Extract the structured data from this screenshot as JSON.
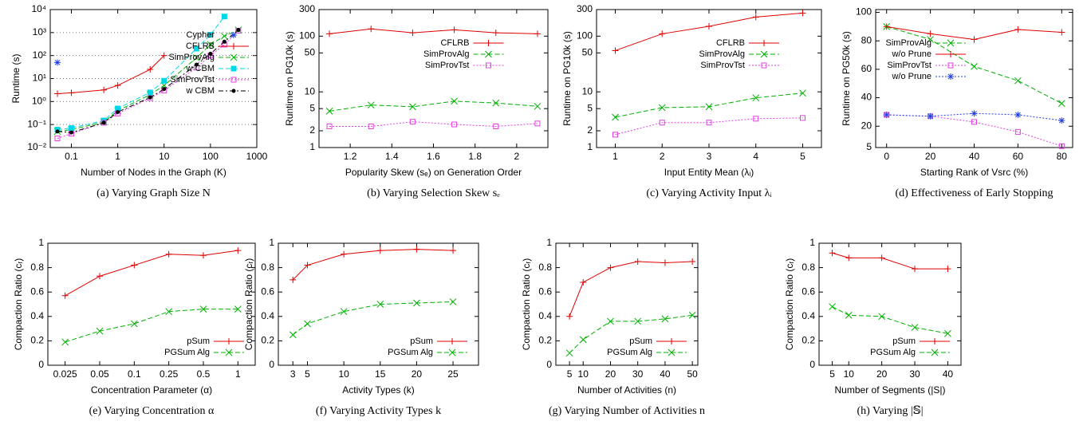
{
  "chart_data": [
    {
      "type": "line",
      "caption": "(a) Varying Graph Size N",
      "x_label": "Number of Nodes in the Graph (K)",
      "y_label": "Runtime (s)",
      "xscale": "log",
      "yscale": "log",
      "xlim": [
        0.035,
        1000
      ],
      "ylim": [
        0.01,
        10000
      ],
      "grid": true,
      "legend": "right",
      "xticks": [
        0.1,
        1,
        10,
        100,
        1000
      ],
      "yticks": [
        {
          "value": 0.01,
          "label": "10⁻²"
        },
        {
          "value": 0.1,
          "label": "10⁻¹"
        },
        {
          "value": 1,
          "label": "10⁰"
        },
        {
          "value": 10,
          "label": "10¹"
        },
        {
          "value": 100,
          "label": "10²"
        },
        {
          "value": 1000,
          "label": "10³"
        },
        {
          "value": 10000,
          "label": "10⁴"
        }
      ],
      "series": [
        {
          "name": "Cypher",
          "color": "#2040e0",
          "marker": "star",
          "line_style": "none",
          "x": [
            0.05
          ],
          "values": [
            50
          ]
        },
        {
          "name": "CFLRB",
          "color": "#e00000",
          "marker": "plus",
          "line_style": "solid",
          "x": [
            0.05,
            0.1,
            0.5,
            1,
            5,
            10
          ],
          "values": [
            2.2,
            2.4,
            3.2,
            5,
            25,
            100
          ]
        },
        {
          "name": "SimProvAlg",
          "color": "#00b000",
          "marker": "cross",
          "line_style": "dashed",
          "x": [
            0.05,
            0.1,
            0.5,
            1,
            5,
            10,
            50,
            100,
            200,
            400
          ],
          "values": [
            0.05,
            0.06,
            0.13,
            0.4,
            2,
            5,
            80,
            300,
            700,
            1300
          ]
        },
        {
          "name": "w CBM",
          "color": "#00d8e8",
          "marker": "square",
          "line_style": "dashed",
          "x": [
            0.05,
            0.1,
            0.5,
            1,
            5,
            10,
            50,
            100,
            200
          ],
          "values": [
            0.06,
            0.07,
            0.15,
            0.5,
            2.5,
            8,
            200,
            800,
            5000
          ]
        },
        {
          "name": "SimProvTst",
          "color": "#e040e0",
          "marker": "open-square",
          "line_style": "dotted",
          "x": [
            0.05,
            0.1,
            0.5,
            1,
            5,
            10,
            50,
            100,
            200,
            400
          ],
          "values": [
            0.025,
            0.04,
            0.12,
            0.3,
            1.4,
            3,
            30,
            100,
            300,
            1200
          ]
        },
        {
          "name": "w CBM",
          "color": "#000000",
          "marker": "dot",
          "line_style": "dashdot",
          "x": [
            0.05,
            0.1,
            0.5,
            1,
            5,
            10,
            50,
            100,
            200,
            400
          ],
          "values": [
            0.05,
            0.045,
            0.12,
            0.35,
            1.5,
            3.5,
            40,
            120,
            400,
            1300
          ]
        }
      ]
    },
    {
      "type": "line",
      "caption": "(b) Varying Selection Skew sₑ",
      "x_label": "Popularity Skew (sₑ) on Generation Order",
      "y_label": "Runtime on PG10k (s)",
      "xscale": "linear",
      "yscale": "log",
      "xlim": [
        1.05,
        2.15
      ],
      "ylim": [
        1,
        300
      ],
      "grid": false,
      "legend": "upper center",
      "xticks": [
        1.2,
        1.4,
        1.6,
        1.8,
        2
      ],
      "yticks": [
        1,
        2,
        5,
        10,
        50,
        100,
        300
      ],
      "series": [
        {
          "name": "CFLRB",
          "color": "#e00000",
          "marker": "plus",
          "line_style": "solid",
          "x": [
            1.1,
            1.3,
            1.5,
            1.7,
            1.9,
            2.1
          ],
          "values": [
            110,
            135,
            115,
            130,
            115,
            110
          ]
        },
        {
          "name": "SimProvAlg",
          "color": "#00b000",
          "marker": "cross",
          "line_style": "dashed",
          "x": [
            1.1,
            1.3,
            1.5,
            1.7,
            1.9,
            2.1
          ],
          "values": [
            4.5,
            5.8,
            5.4,
            6.8,
            6.3,
            5.5
          ]
        },
        {
          "name": "SimProvTst",
          "color": "#e040e0",
          "marker": "open-square",
          "line_style": "dotted",
          "x": [
            1.1,
            1.3,
            1.5,
            1.7,
            1.9,
            2.1
          ],
          "values": [
            2.4,
            2.4,
            2.9,
            2.6,
            2.4,
            2.7
          ]
        }
      ]
    },
    {
      "type": "line",
      "caption": "(c) Varying Activity Input λᵢ",
      "x_label": "Input Entity Mean (λᵢ)",
      "y_label": "Runtime on PG10k (s)",
      "xscale": "linear",
      "yscale": "log",
      "xlim": [
        0.6,
        5.4
      ],
      "ylim": [
        1,
        300
      ],
      "grid": false,
      "legend": "upper center",
      "xticks": [
        1,
        2,
        3,
        4,
        5
      ],
      "yticks": [
        1,
        2,
        5,
        10,
        50,
        100,
        300
      ],
      "series": [
        {
          "name": "CFLRB",
          "color": "#e00000",
          "marker": "plus",
          "line_style": "solid",
          "x": [
            1,
            2,
            3,
            4,
            5
          ],
          "values": [
            55,
            110,
            150,
            220,
            260
          ]
        },
        {
          "name": "SimProvAlg",
          "color": "#00b000",
          "marker": "cross",
          "line_style": "dashed",
          "x": [
            1,
            2,
            3,
            4,
            5
          ],
          "values": [
            3.5,
            5.2,
            5.4,
            7.8,
            9.5
          ]
        },
        {
          "name": "SimProvTst",
          "color": "#e040e0",
          "marker": "open-square",
          "line_style": "dotted",
          "x": [
            1,
            2,
            3,
            4,
            5
          ],
          "values": [
            1.7,
            2.8,
            2.8,
            3.3,
            3.4
          ]
        }
      ]
    },
    {
      "type": "line",
      "caption": "(d) Effectiveness of Early Stopping",
      "x_label": "Starting Rank of Vsrc (%)",
      "y_label": "Runtime on PG50k (s)",
      "xscale": "linear",
      "yscale": "linear",
      "xlim": [
        -5,
        85
      ],
      "ylim": [
        5,
        102
      ],
      "grid": false,
      "legend": "upper left",
      "xticks": [
        0,
        20,
        40,
        60,
        80
      ],
      "yticks": [
        5,
        20,
        40,
        60,
        80,
        100
      ],
      "series": [
        {
          "name": "SimProvAlg",
          "color": "#00b000",
          "marker": "cross",
          "line_style": "dashed",
          "x": [
            0,
            20,
            40,
            60,
            80
          ],
          "values": [
            90,
            81,
            62,
            52,
            36
          ]
        },
        {
          "name": "w/o Prune",
          "color": "#e00000",
          "marker": "plus",
          "line_style": "solid",
          "x": [
            0,
            20,
            40,
            60,
            80
          ],
          "values": [
            90,
            85,
            81,
            88,
            86
          ]
        },
        {
          "name": "SimProvTst",
          "color": "#e040e0",
          "marker": "open-square",
          "line_style": "dotted",
          "x": [
            0,
            20,
            40,
            60,
            80
          ],
          "values": [
            28,
            27,
            23,
            16,
            6
          ]
        },
        {
          "name": "w/o Prune",
          "color": "#2040e0",
          "marker": "star",
          "line_style": "dotted",
          "x": [
            0,
            20,
            40,
            60,
            80
          ],
          "values": [
            28,
            27,
            29,
            28,
            24
          ]
        }
      ]
    },
    {
      "type": "line",
      "caption": "(e) Varying Concentration α",
      "x_label": "Concentration Parameter (α)",
      "y_label": "Compaction Ratio (cᵣ)",
      "yscale": "linear",
      "ylim": [
        0,
        1
      ],
      "grid": false,
      "legend": "lower right",
      "categories": [
        "0.025",
        "0.05",
        "0.1",
        "0.25",
        "0.5",
        "1"
      ],
      "yticks": [
        0,
        0.2,
        0.4,
        0.6,
        0.8,
        1
      ],
      "series": [
        {
          "name": "pSum",
          "color": "#e00000",
          "marker": "plus",
          "line_style": "solid",
          "values": [
            0.57,
            0.73,
            0.82,
            0.91,
            0.9,
            0.94
          ]
        },
        {
          "name": "PGSum Alg",
          "color": "#00b000",
          "marker": "cross",
          "line_style": "dashed",
          "values": [
            0.19,
            0.28,
            0.34,
            0.44,
            0.46,
            0.46
          ]
        }
      ]
    },
    {
      "type": "line",
      "caption": "(f) Varying Activity Types k",
      "x_label": "Activity Types (k)",
      "y_label": "Compaction Ratio (cᵣ)",
      "xscale": "linear",
      "yscale": "linear",
      "xlim": [
        1,
        28.5
      ],
      "ylim": [
        0,
        1
      ],
      "grid": false,
      "legend": "lower right",
      "xticks": [
        3,
        5,
        10,
        15,
        20,
        25
      ],
      "yticks": [
        0,
        0.2,
        0.4,
        0.6,
        0.8,
        1
      ],
      "series": [
        {
          "name": "pSum",
          "color": "#e00000",
          "marker": "plus",
          "line_style": "solid",
          "x": [
            3,
            5,
            10,
            15,
            20,
            25
          ],
          "values": [
            0.7,
            0.82,
            0.91,
            0.94,
            0.95,
            0.94
          ]
        },
        {
          "name": "PGSum Alg",
          "color": "#00b000",
          "marker": "cross",
          "line_style": "dashed",
          "x": [
            3,
            5,
            10,
            15,
            20,
            25
          ],
          "values": [
            0.25,
            0.34,
            0.44,
            0.5,
            0.51,
            0.52
          ]
        }
      ]
    },
    {
      "type": "line",
      "caption": "(g) Varying Number of Activities n",
      "x_label": "Number of Activities (n)",
      "y_label": "Compaction Ratio (cᵣ)",
      "xscale": "linear",
      "yscale": "linear",
      "xlim": [
        0,
        52
      ],
      "ylim": [
        0,
        1
      ],
      "grid": false,
      "legend": "lower right",
      "xticks": [
        5,
        10,
        20,
        30,
        40,
        50
      ],
      "yticks": [
        0,
        0.2,
        0.4,
        0.6,
        0.8,
        1
      ],
      "series": [
        {
          "name": "pSum",
          "color": "#e00000",
          "marker": "plus",
          "line_style": "solid",
          "x": [
            5,
            10,
            20,
            30,
            40,
            50
          ],
          "values": [
            0.4,
            0.68,
            0.8,
            0.85,
            0.84,
            0.85
          ]
        },
        {
          "name": "PGSum Alg",
          "color": "#00b000",
          "marker": "cross",
          "line_style": "dashed",
          "x": [
            5,
            10,
            20,
            30,
            40,
            50
          ],
          "values": [
            0.1,
            0.21,
            0.36,
            0.36,
            0.38,
            0.41
          ]
        }
      ]
    },
    {
      "type": "line",
      "caption": "(h) Varying |𝕊|",
      "x_label": "Number of Segments (|S|)",
      "y_label": "Compaction Ratio (cᵣ)",
      "xscale": "linear",
      "yscale": "linear",
      "xlim": [
        1,
        44
      ],
      "ylim": [
        0,
        1
      ],
      "grid": false,
      "legend": "lower right",
      "xticks": [
        5,
        10,
        20,
        30,
        40
      ],
      "yticks": [
        0,
        0.2,
        0.4,
        0.6,
        0.8,
        1
      ],
      "series": [
        {
          "name": "pSum",
          "color": "#e00000",
          "marker": "plus",
          "line_style": "solid",
          "x": [
            5,
            10,
            20,
            30,
            40
          ],
          "values": [
            0.92,
            0.88,
            0.88,
            0.79,
            0.79
          ]
        },
        {
          "name": "PGSum Alg",
          "color": "#00b000",
          "marker": "cross",
          "line_style": "dashed",
          "x": [
            5,
            10,
            20,
            30,
            40
          ],
          "values": [
            0.48,
            0.41,
            0.4,
            0.31,
            0.26
          ]
        }
      ]
    }
  ]
}
